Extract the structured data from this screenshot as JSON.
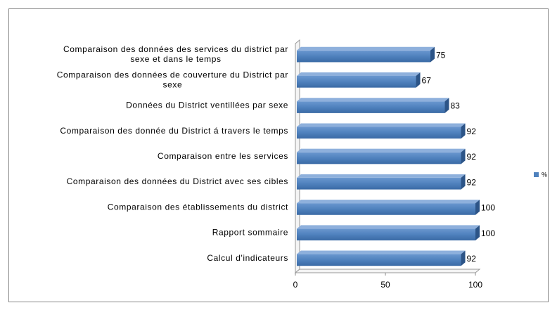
{
  "chart_data": {
    "type": "bar",
    "orientation": "horizontal",
    "categories": [
      "Comparaison des données des services du district par sexe et dans le temps",
      "Comparaison des données de couverture du District par sexe",
      "Données du District ventillées par sexe",
      "Comparaison des donnée du District á travers le temps",
      "Comparaison entre les services",
      "Comparaison des données du District avec ses cibles",
      "Comparaison des établissements du district",
      "Rapport sommaire",
      "Calcul d'indicateurs"
    ],
    "series": [
      {
        "name": "%",
        "color": "#4f81bd",
        "values": [
          75,
          67,
          83,
          92,
          92,
          92,
          100,
          100,
          92
        ]
      }
    ],
    "xlim": [
      0,
      100
    ],
    "xticks": [
      0,
      50,
      100
    ],
    "grid": false,
    "legend": "right"
  }
}
